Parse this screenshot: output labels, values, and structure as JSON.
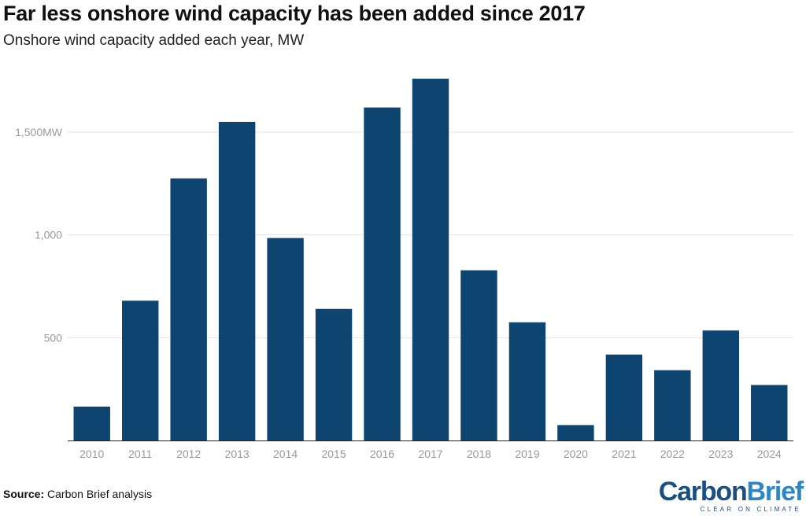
{
  "chart_data": {
    "type": "bar",
    "title": "Far less onshore wind capacity has been added since 2017",
    "subtitle": "Onshore wind capacity added each year, MW",
    "xlabel": "",
    "ylabel": "",
    "categories": [
      "2010",
      "2011",
      "2012",
      "2013",
      "2014",
      "2015",
      "2016",
      "2017",
      "2018",
      "2019",
      "2020",
      "2021",
      "2022",
      "2023",
      "2024"
    ],
    "values": [
      165,
      680,
      1275,
      1550,
      985,
      640,
      1620,
      1760,
      828,
      575,
      75,
      418,
      342,
      535,
      270
    ],
    "ylim": [
      0,
      1800
    ],
    "yticks": [
      {
        "value": 500,
        "label": "500"
      },
      {
        "value": 1000,
        "label": "1,000"
      },
      {
        "value": 1500,
        "label": "1,500MW"
      }
    ],
    "grid": true,
    "bar_color": "#0d4470"
  },
  "footer": {
    "source_label": "Source:",
    "source_text": " Carbon Brief analysis"
  },
  "logo": {
    "word_carbon": "Carbon",
    "word_brief": "Brief",
    "tagline": "CLEAR ON CLIMATE",
    "color_carbon": "#1a4f80",
    "color_brief": "#2f86c6"
  }
}
